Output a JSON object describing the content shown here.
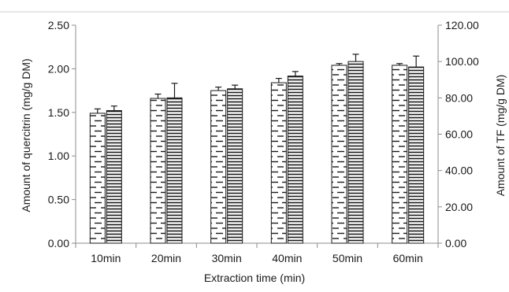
{
  "chart_data": {
    "type": "bar",
    "xlabel": "Extraction time (min)",
    "ylabel_left": "Amount of quercitrin (mg/g DM)",
    "ylabel_right": "Amount of TF (mg/g DM)",
    "categories": [
      "10min",
      "20min",
      "30min",
      "40min",
      "50min",
      "60min"
    ],
    "left_axis": {
      "range": [
        0,
        2.5
      ],
      "ticks": [
        "0.00",
        "0.50",
        "1.00",
        "1.50",
        "2.00",
        "2.50"
      ]
    },
    "right_axis": {
      "range": [
        0,
        120
      ],
      "ticks": [
        "0.00",
        "20.00",
        "40.00",
        "60.00",
        "80.00",
        "100.00",
        "120.00"
      ]
    },
    "series": [
      {
        "axis": "left",
        "pattern": "dashes",
        "values": [
          1.49,
          1.66,
          1.75,
          1.84,
          2.04,
          2.04
        ],
        "errors": [
          0.05,
          0.05,
          0.04,
          0.05,
          0.02,
          0.02
        ]
      },
      {
        "axis": "right",
        "pattern": "horizontal-lines",
        "values": [
          73,
          80,
          85,
          92,
          100,
          97
        ],
        "errors": [
          2.5,
          8,
          2,
          2.5,
          4,
          6
        ]
      }
    ]
  }
}
